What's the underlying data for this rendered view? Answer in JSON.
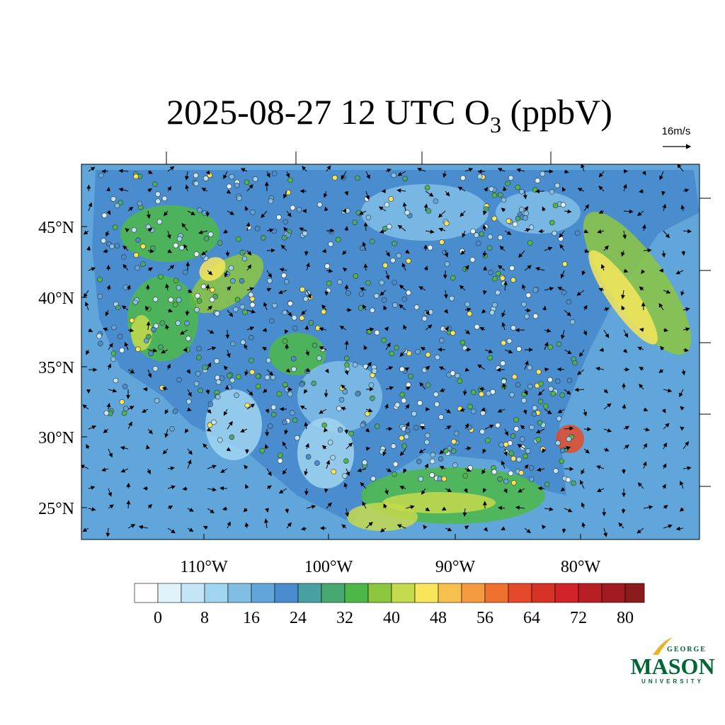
{
  "header": {
    "title": "2025-08-27 12 UTC O",
    "title_subscript": "3",
    "title_rest": " (ppbV)"
  },
  "map": {
    "lat_labels": [
      "45°N",
      "40°N",
      "35°N",
      "30°N",
      "25°N"
    ],
    "lon_labels": [
      "110°W",
      "100°W",
      "90°W",
      "80°W"
    ],
    "wind_reference": "16m/s"
  },
  "colorbar": {
    "levels": [
      0,
      4,
      8,
      12,
      16,
      20,
      24,
      28,
      32,
      36,
      40,
      44,
      48,
      52,
      56,
      60,
      64,
      68,
      72,
      76,
      80
    ],
    "colors": [
      "#ffffff",
      "#e0f3fa",
      "#c4e5f5",
      "#a0d5f0",
      "#80bee6",
      "#61a6db",
      "#4a8dcf",
      "#48a0a0",
      "#48a872",
      "#4db848",
      "#8cc63f",
      "#c4d94c",
      "#f7e65a",
      "#f8c04f",
      "#f59b3f",
      "#f07030",
      "#e44a2a",
      "#d63226",
      "#d2232a",
      "#b81f25",
      "#a31b22",
      "#8b1a1a"
    ],
    "ticks": [
      0,
      8,
      16,
      24,
      32,
      40,
      48,
      56,
      64,
      72,
      80
    ]
  },
  "logo": {
    "line1": "GEORGE",
    "line2": "MASON",
    "line3": "UNIVERSITY"
  }
}
